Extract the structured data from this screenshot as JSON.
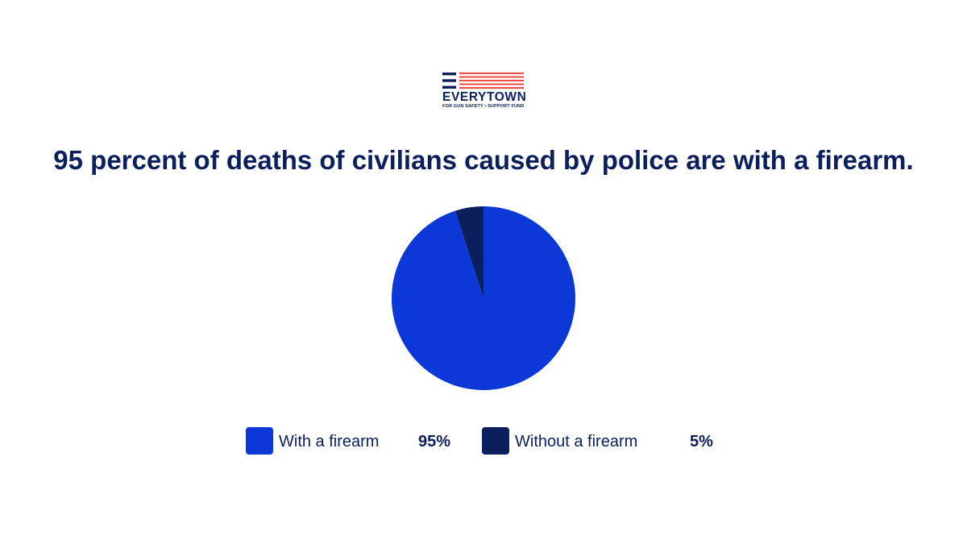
{
  "brand": {
    "name": "EVERYTOWN",
    "tagline": "FOR GUN SAFETY • SUPPORT FUND",
    "colors": {
      "navy": "#0a1f5c",
      "red": "#e8372f"
    }
  },
  "chart_data": {
    "type": "pie",
    "title": "95 percent of deaths of civilians caused by police are with a firearm.",
    "slices": [
      {
        "label": "With a firearm",
        "value": 95,
        "display": "95%",
        "color": "#0d38d8"
      },
      {
        "label": "Without a firearm",
        "value": 5,
        "display": "5%",
        "color": "#0a1f5c"
      }
    ],
    "legend_position": "bottom"
  }
}
